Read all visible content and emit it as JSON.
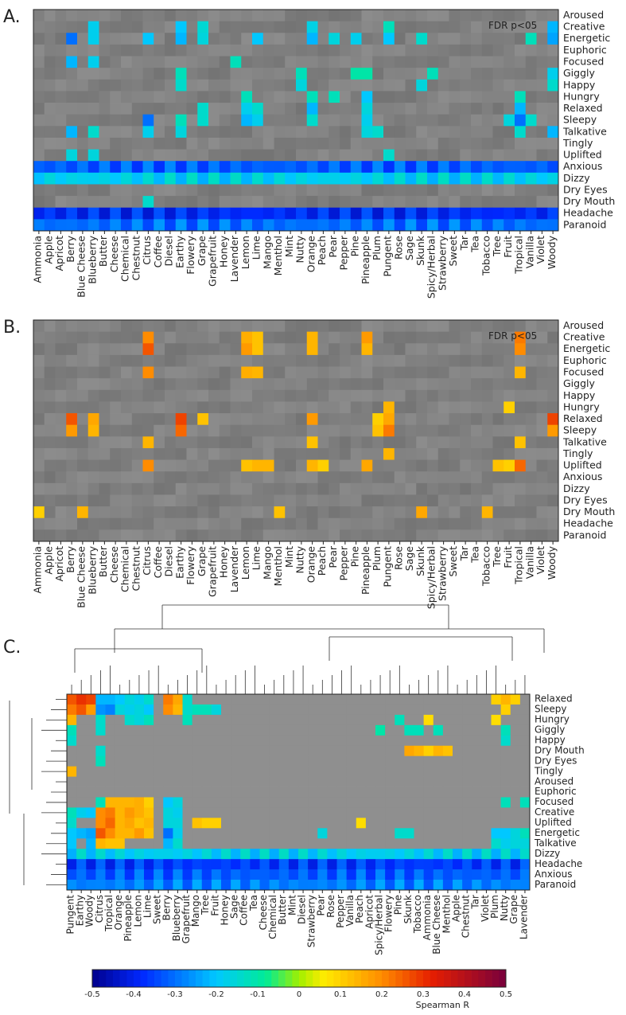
{
  "chart_data": [
    {
      "type": "heatmap",
      "panel_label": "A.",
      "annotation": "FDR p<05",
      "x_categories": [
        "Ammonia",
        "Apple",
        "Apricot",
        "Berry",
        "Blue Cheese",
        "Blueberry",
        "Butter",
        "Cheese",
        "Chemical",
        "Chestnut",
        "Citrus",
        "Coffee",
        "Diesel",
        "Earthy",
        "Flowery",
        "Grape",
        "Grapefruit",
        "Honey",
        "Lavender",
        "Lemon",
        "Lime",
        "Mango",
        "Menthol",
        "Mint",
        "Nutty",
        "Orange",
        "Peach",
        "Pear",
        "Pepper",
        "Pine",
        "Pineapple",
        "Plum",
        "Pungent",
        "Rose",
        "Sage",
        "Skunk",
        "Spicy/Herbal",
        "Strawberry",
        "Sweet",
        "Tar",
        "Tea",
        "Tobacco",
        "Tree",
        "Fruit",
        "Tropical",
        "Vanilla",
        "Violet",
        "Woody"
      ],
      "y_categories": [
        "Aroused",
        "Creative",
        "Energetic",
        "Euphoric",
        "Focused",
        "Giggly",
        "Happy",
        "Hungry",
        "Relaxed",
        "Sleepy",
        "Talkative",
        "Tingly",
        "Uplifted",
        "Anxious",
        "Dizzy",
        "Dry Eyes",
        "Dry Mouth",
        "Headache",
        "Paranoid"
      ],
      "highlights": {
        "Creative": {
          "Blueberry": -0.18,
          "Earthy": -0.2,
          "Grape": -0.15,
          "Orange": -0.17,
          "Pungent": -0.12,
          "Woody": -0.22
        },
        "Energetic": {
          "Berry": -0.3,
          "Blueberry": -0.18,
          "Citrus": -0.2,
          "Earthy": -0.22,
          "Grape": -0.16,
          "Lime": -0.2,
          "Orange": -0.22,
          "Pear": -0.16,
          "Pine": -0.18,
          "Pungent": -0.2,
          "Skunk": -0.14,
          "Vanilla": -0.12,
          "Woody": -0.24
        },
        "Focused": {
          "Berry": -0.22,
          "Blueberry": -0.18,
          "Lavender": -0.12
        },
        "Giggly": {
          "Earthy": -0.12,
          "Nutty": -0.12,
          "Pine": -0.1,
          "Pineapple": -0.1,
          "Spicy/Herbal": -0.12,
          "Woody": -0.18
        },
        "Happy": {
          "Earthy": -0.14,
          "Nutty": -0.16,
          "Skunk": -0.16,
          "Woody": -0.14
        },
        "Hungry": {
          "Lemon": -0.12,
          "Orange": -0.12,
          "Pear": -0.12,
          "Pineapple": -0.2,
          "Tropical": -0.12
        },
        "Relaxed": {
          "Grape": -0.14,
          "Lemon": -0.18,
          "Lime": -0.14,
          "Orange": -0.22,
          "Pineapple": -0.16,
          "Tropical": -0.22
        },
        "Sleepy": {
          "Citrus": -0.3,
          "Earthy": -0.12,
          "Grape": -0.14,
          "Lemon": -0.22,
          "Lime": -0.18,
          "Orange": -0.14,
          "Pineapple": -0.18,
          "Fruit": -0.16,
          "Tropical": -0.3,
          "Vanilla": -0.14
        },
        "Talkative": {
          "Berry": -0.22,
          "Blueberry": -0.14,
          "Citrus": -0.18,
          "Earthy": -0.16,
          "Pineapple": -0.16,
          "Plum": -0.14,
          "Tropical": -0.14,
          "Woody": -0.22
        },
        "Uplifted": {
          "Berry": -0.16,
          "Blueberry": -0.16,
          "Pungent": -0.14
        },
        "Anxious": {
          "_row": -0.32
        },
        "Dizzy": {
          "_row": -0.18
        },
        "Dry Mouth": {
          "Citrus": -0.14
        },
        "Headache": {
          "_row": -0.38
        },
        "Paranoid": {
          "_row": -0.3
        }
      }
    },
    {
      "type": "heatmap",
      "panel_label": "B.",
      "annotation": "FDR p<05",
      "x_categories": [
        "Ammonia",
        "Apple",
        "Apricot",
        "Berry",
        "Blue Cheese",
        "Blueberry",
        "Butter",
        "Cheese",
        "Chemical",
        "Chestnut",
        "Citrus",
        "Coffee",
        "Diesel",
        "Earthy",
        "Flowery",
        "Grape",
        "Grapefruit",
        "Honey",
        "Lavender",
        "Lemon",
        "Lime",
        "Mango",
        "Menthol",
        "Mint",
        "Nutty",
        "Orange",
        "Peach",
        "Pear",
        "Pepper",
        "Pine",
        "Pineapple",
        "Plum",
        "Pungent",
        "Rose",
        "Sage",
        "Skunk",
        "Spicy/Herbal",
        "Strawberry",
        "Sweet",
        "Tar",
        "Tea",
        "Tobacco",
        "Tree",
        "Fruit",
        "Tropical",
        "Vanilla",
        "Violet",
        "Woody"
      ],
      "y_categories": [
        "Aroused",
        "Creative",
        "Energetic",
        "Euphoric",
        "Focused",
        "Giggly",
        "Happy",
        "Hungry",
        "Relaxed",
        "Sleepy",
        "Talkative",
        "Tingly",
        "Uplifted",
        "Anxious",
        "Dizzy",
        "Dry Eyes",
        "Dry Mouth",
        "Headache",
        "Paranoid"
      ],
      "highlights": {
        "Creative": {
          "Citrus": 0.2,
          "Lemon": 0.15,
          "Lime": 0.12,
          "Orange": 0.14,
          "Pineapple": 0.18,
          "Tropical": 0.22
        },
        "Energetic": {
          "Citrus": 0.26,
          "Lemon": 0.18,
          "Lime": 0.12,
          "Orange": 0.14,
          "Pineapple": 0.14,
          "Tropical": 0.2
        },
        "Focused": {
          "Citrus": 0.2,
          "Lemon": 0.15,
          "Lime": 0.14,
          "Tropical": 0.14
        },
        "Hungry": {
          "Pungent": 0.14,
          "Fruit": 0.1
        },
        "Relaxed": {
          "Berry": 0.26,
          "Blueberry": 0.16,
          "Earthy": 0.28,
          "Grape": 0.12,
          "Orange": 0.18,
          "Plum": 0.1,
          "Pungent": 0.16,
          "Woody": 0.28
        },
        "Sleepy": {
          "Berry": 0.18,
          "Blueberry": 0.14,
          "Earthy": 0.24,
          "Plum": 0.12,
          "Pungent": 0.22,
          "Woody": 0.18
        },
        "Talkative": {
          "Citrus": 0.14,
          "Orange": 0.12,
          "Tropical": 0.12
        },
        "Tingly": {
          "Pungent": 0.14
        },
        "Uplifted": {
          "Citrus": 0.2,
          "Lemon": 0.12,
          "Lime": 0.14,
          "Mango": 0.14,
          "Orange": 0.14,
          "Peach": 0.1,
          "Pineapple": 0.16,
          "Fruit": 0.1,
          "Tree": 0.12,
          "Tropical": 0.24
        },
        "Dry Mouth": {
          "Ammonia": 0.1,
          "Blue Cheese": 0.14,
          "Menthol": 0.12,
          "Skunk": 0.16,
          "Tobacco": 0.14
        }
      }
    },
    {
      "type": "heatmap",
      "panel_label": "C.",
      "x_categories": [
        "Pungent",
        "Earthy",
        "Woody",
        "Citrus",
        "Tropical",
        "Orange",
        "Pineapple",
        "Lemon",
        "Lime",
        "Sweet",
        "Berry",
        "Blueberry",
        "Grapefruit",
        "Mango",
        "Tree",
        "Fruit",
        "Honey",
        "Sage",
        "Coffee",
        "Tea",
        "Cheese",
        "Chemical",
        "Butter",
        "Mint",
        "Diesel",
        "Strawberry",
        "Pear",
        "Rose",
        "Pepper",
        "Vanilla",
        "Peach",
        "Apricot",
        "Spicy/Herbal",
        "Flowery",
        "Pine",
        "Skunk",
        "Tobacco",
        "Ammonia",
        "Blue Cheese",
        "Menthol",
        "Apple",
        "Chestnut",
        "Tar",
        "Violet",
        "Plum",
        "Nutty",
        "Grape",
        "Lavender"
      ],
      "y_categories": [
        "Relaxed",
        "Sleepy",
        "Hungry",
        "Giggly",
        "Happy",
        "Dry Mouth",
        "Dry Eyes",
        "Tingly",
        "Aroused",
        "Euphoric",
        "Focused",
        "Creative",
        "Uplifted",
        "Energetic",
        "Talkative",
        "Dizzy",
        "Headache",
        "Anxious",
        "Paranoid"
      ],
      "colorbar": {
        "label": "Spearman R",
        "range": [
          -0.5,
          0.5
        ],
        "ticks": [
          "-0.5",
          "-0.4",
          "-0.3",
          "-0.2",
          "-0.1",
          "0",
          "0.1",
          "0.2",
          "0.3",
          "0.4",
          "0.5"
        ]
      },
      "highlights": {
        "Relaxed": {
          "Pungent": 0.26,
          "Earthy": 0.3,
          "Woody": 0.28,
          "Citrus": -0.22,
          "Tropical": -0.22,
          "Orange": -0.2,
          "Pineapple": -0.16,
          "Lemon": -0.18,
          "Lime": -0.14,
          "Berry": 0.22,
          "Blueberry": 0.16,
          "Grapefruit": -0.14,
          "Plum": 0.1,
          "Nutty": 0.14,
          "Grape": 0.1
        },
        "Sleepy": {
          "Pungent": 0.22,
          "Earthy": 0.26,
          "Woody": 0.18,
          "Citrus": -0.26,
          "Tropical": -0.28,
          "Orange": -0.16,
          "Pineapple": -0.18,
          "Lemon": -0.16,
          "Lime": -0.2,
          "Berry": 0.2,
          "Blueberry": 0.14,
          "Grapefruit": -0.14,
          "Mango": -0.12,
          "Tree": -0.12,
          "Fruit": -0.16,
          "Nutty": 0.1
        },
        "Hungry": {
          "Pungent": 0.14,
          "Citrus": -0.14,
          "Lime": -0.12,
          "Lemon": -0.16,
          "Pineapple": -0.14,
          "Grapefruit": -0.12,
          "Pine": -0.12,
          "Plum": 0.08,
          "Ammonia": 0.08
        },
        "Giggly": {
          "Pungent": -0.12,
          "Citrus": -0.14,
          "Skunk": -0.12,
          "Tobacco": -0.12,
          "Spicy/Herbal": -0.1,
          "Blue Cheese": -0.12,
          "Nutty": -0.12
        },
        "Happy": {
          "Pungent": -0.14,
          "Nutty": -0.14
        },
        "Dry Mouth": {
          "Citrus": -0.14,
          "Skunk": 0.16,
          "Tobacco": 0.14,
          "Ammonia": 0.1,
          "Blue Cheese": 0.14,
          "Menthol": 0.12
        },
        "Dry Eyes": {
          "Citrus": -0.12
        },
        "Tingly": {
          "Pungent": 0.14
        },
        "Focused": {
          "Citrus": -0.12,
          "Tropical": 0.14,
          "Orange": 0.14,
          "Pineapple": 0.14,
          "Lemon": 0.15,
          "Lime": 0.1,
          "Berry": -0.2,
          "Blueberry": -0.16,
          "Lavender": -0.12,
          "Nutty": -0.12
        },
        "Creative": {
          "Pungent": -0.12,
          "Earthy": -0.18,
          "Woody": -0.2,
          "Citrus": 0.2,
          "Tropical": 0.22,
          "Orange": 0.14,
          "Pineapple": 0.18,
          "Lemon": 0.15,
          "Lime": 0.12,
          "Berry": -0.16,
          "Blueberry": -0.18
        },
        "Uplifted": {
          "Pungent": -0.14,
          "Citrus": 0.2,
          "Tropical": 0.24,
          "Orange": 0.14,
          "Pineapple": 0.16,
          "Lemon": 0.12,
          "Lime": 0.14,
          "Berry": -0.16,
          "Blueberry": -0.16,
          "Mango": 0.12,
          "Tree": 0.1,
          "Fruit": 0.1,
          "Peach": 0.08
        },
        "Energetic": {
          "Pungent": -0.2,
          "Earthy": -0.22,
          "Woody": -0.24,
          "Citrus": 0.26,
          "Tropical": 0.2,
          "Orange": 0.14,
          "Pineapple": 0.14,
          "Lemon": 0.18,
          "Lime": 0.12,
          "Berry": -0.3,
          "Blueberry": -0.18,
          "Pine": -0.14,
          "Pear": -0.16,
          "Skunk": -0.14,
          "Plum": -0.2,
          "Nutty": -0.2,
          "Grape": -0.16,
          "Lavender": -0.12
        },
        "Talkative": {
          "Pungent": -0.2,
          "Woody": -0.22,
          "Citrus": 0.14,
          "Tropical": 0.12,
          "Orange": 0.12,
          "Berry": -0.22,
          "Blueberry": -0.14,
          "Plum": -0.14,
          "Nutty": -0.18,
          "Grape": -0.16,
          "Lavender": -0.16
        },
        "Dizzy": {
          "_row": -0.18
        },
        "Headache": {
          "_row": -0.36
        },
        "Anxious": {
          "_row": -0.32
        },
        "Paranoid": {
          "_row": -0.28
        }
      }
    }
  ]
}
